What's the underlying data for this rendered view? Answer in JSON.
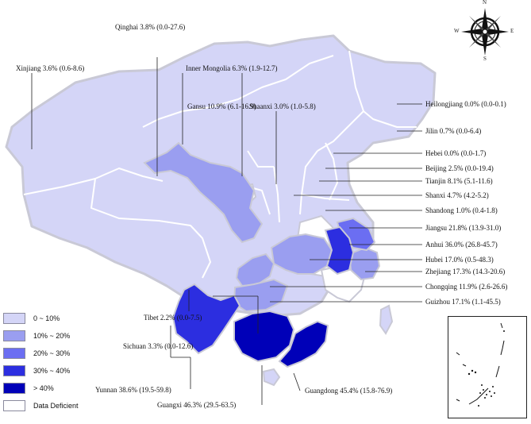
{
  "legend": {
    "items": [
      {
        "label": "0 ~ 10%",
        "color": "#d4d5f7"
      },
      {
        "label": "10% ~ 20%",
        "color": "#9a9ef0"
      },
      {
        "label": "20% ~ 30%",
        "color": "#6b6ef2"
      },
      {
        "label": "30% ~ 40%",
        "color": "#2c2ee0"
      },
      {
        "label": "> 40%",
        "color": "#0000b8"
      },
      {
        "label": "Data Deficient",
        "color": "#ffffff"
      }
    ]
  },
  "compass": {
    "n": "N",
    "s": "S",
    "e": "E",
    "w": "W"
  },
  "regions": {
    "xinjiang": "Xinjiang 3.6% (0.6-8.6)",
    "qinghai": "Qinghai 3.8% (0.0-27.6)",
    "inner_mongolia": "Inner Mongolia 6.3% (1.9-12.7)",
    "gansu": "Gansu 10.9% (6.1-16.9)",
    "shaanxi": "Shaanxi 3.0% (1.0-5.8)",
    "heilongjiang": "Heilongjiang 0.0% (0.0-0.1)",
    "jilin": "Jilin 0.7% (0.0-6.4)",
    "hebei": "Hebei 0.0% (0.0-1.7)",
    "beijing": "Beijing 2.5% (0.0-19.4)",
    "tianjin": "Tianjin 8.1% (5.1-11.6)",
    "shanxi": "Shanxi 4.7% (4.2-5.2)",
    "shandong": "Shandong 1.0% (0.4-1.8)",
    "jiangsu": "Jiangsu 21.8% (13.9-31.0)",
    "anhui": "Anhui 36.0% (26.8-45.7)",
    "hubei": "Hubei 17.0% (0.5-48.3)",
    "zhejiang": "Zhejiang  17.3% (14.3-20.6)",
    "chongqing": "Chongqing 11.9% (2.6-26.6)",
    "guizhou": "Guizhou 17.1% (1.1-45.5)",
    "tibet": "Tibet 2.2% (0.0-7.5)",
    "sichuan": "Sichuan 3.3% (0.0-12.6)",
    "yunnan": "Yunnan 38.6% (19.5-59.8)",
    "guangdong": "Guangdong 45.4% (15.8-76.9)",
    "guangxi": "Guangxi 46.3% (29.5-63.5)"
  }
}
